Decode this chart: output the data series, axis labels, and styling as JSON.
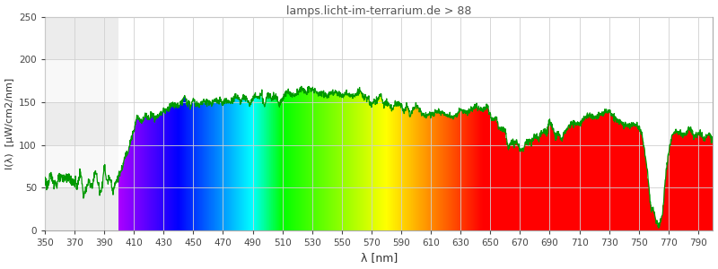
{
  "title": "lamps.licht-im-terrarium.de > 88",
  "xlabel": "λ [nm]",
  "ylabel": "I(λ)  [µW/cm2/nm]",
  "xlim": [
    350,
    800
  ],
  "ylim": [
    0,
    250
  ],
  "yticks": [
    0,
    50,
    100,
    150,
    200,
    250
  ],
  "xticks": [
    350,
    370,
    390,
    410,
    430,
    450,
    470,
    490,
    510,
    530,
    550,
    570,
    590,
    610,
    630,
    650,
    670,
    690,
    710,
    730,
    750,
    770,
    790
  ],
  "bg_color": "#f0f0f0",
  "plot_bg_color": "#ffffff",
  "grid_color": "#d0d0d0",
  "line_color": "#009900",
  "title_color": "#555555",
  "spectrum_start_nm": 400,
  "spectrum_end_nm": 730,
  "spectrum_data": [
    [
      350,
      57
    ],
    [
      352,
      52
    ],
    [
      354,
      60
    ],
    [
      356,
      48
    ],
    [
      358,
      55
    ],
    [
      360,
      62
    ],
    [
      362,
      50
    ],
    [
      364,
      58
    ],
    [
      366,
      65
    ],
    [
      368,
      53
    ],
    [
      370,
      60
    ],
    [
      372,
      55
    ],
    [
      374,
      68
    ],
    [
      376,
      52
    ],
    [
      378,
      58
    ],
    [
      380,
      62
    ],
    [
      382,
      55
    ],
    [
      384,
      70
    ],
    [
      386,
      58
    ],
    [
      388,
      53
    ],
    [
      390,
      65
    ],
    [
      392,
      58
    ],
    [
      394,
      62
    ],
    [
      396,
      55
    ],
    [
      398,
      60
    ],
    [
      400,
      65
    ],
    [
      402,
      75
    ],
    [
      404,
      85
    ],
    [
      406,
      95
    ],
    [
      408,
      108
    ],
    [
      410,
      118
    ],
    [
      412,
      125
    ],
    [
      414,
      130
    ],
    [
      416,
      132
    ],
    [
      418,
      133
    ],
    [
      420,
      134
    ],
    [
      422,
      136
    ],
    [
      424,
      137
    ],
    [
      426,
      138
    ],
    [
      428,
      136
    ],
    [
      430,
      138
    ],
    [
      432,
      140
    ],
    [
      434,
      145
    ],
    [
      436,
      148
    ],
    [
      438,
      150
    ],
    [
      440,
      148
    ],
    [
      442,
      150
    ],
    [
      444,
      152
    ],
    [
      446,
      150
    ],
    [
      448,
      150
    ],
    [
      450,
      152
    ],
    [
      452,
      148
    ],
    [
      454,
      150
    ],
    [
      456,
      148
    ],
    [
      458,
      147
    ],
    [
      460,
      148
    ],
    [
      462,
      150
    ],
    [
      464,
      152
    ],
    [
      466,
      150
    ],
    [
      468,
      148
    ],
    [
      470,
      150
    ],
    [
      472,
      152
    ],
    [
      474,
      153
    ],
    [
      476,
      155
    ],
    [
      478,
      154
    ],
    [
      480,
      152
    ],
    [
      482,
      151
    ],
    [
      484,
      153
    ],
    [
      486,
      152
    ],
    [
      488,
      150
    ],
    [
      490,
      152
    ],
    [
      492,
      153
    ],
    [
      494,
      155
    ],
    [
      496,
      154
    ],
    [
      498,
      153
    ],
    [
      500,
      155
    ],
    [
      502,
      157
    ],
    [
      504,
      158
    ],
    [
      506,
      157
    ],
    [
      508,
      155
    ],
    [
      510,
      156
    ],
    [
      512,
      157
    ],
    [
      514,
      158
    ],
    [
      516,
      160
    ],
    [
      518,
      161
    ],
    [
      520,
      162
    ],
    [
      522,
      163
    ],
    [
      524,
      162
    ],
    [
      526,
      163
    ],
    [
      528,
      164
    ],
    [
      530,
      163
    ],
    [
      532,
      162
    ],
    [
      534,
      161
    ],
    [
      536,
      162
    ],
    [
      538,
      163
    ],
    [
      540,
      162
    ],
    [
      542,
      161
    ],
    [
      544,
      160
    ],
    [
      546,
      161
    ],
    [
      548,
      162
    ],
    [
      550,
      163
    ],
    [
      552,
      162
    ],
    [
      554,
      161
    ],
    [
      556,
      160
    ],
    [
      558,
      159
    ],
    [
      560,
      158
    ],
    [
      562,
      157
    ],
    [
      564,
      156
    ],
    [
      566,
      155
    ],
    [
      568,
      154
    ],
    [
      570,
      153
    ],
    [
      572,
      152
    ],
    [
      574,
      151
    ],
    [
      576,
      150
    ],
    [
      578,
      149
    ],
    [
      580,
      148
    ],
    [
      582,
      147
    ],
    [
      584,
      146
    ],
    [
      586,
      145
    ],
    [
      588,
      144
    ],
    [
      590,
      143
    ],
    [
      592,
      142
    ],
    [
      594,
      141
    ],
    [
      596,
      140
    ],
    [
      598,
      139
    ],
    [
      600,
      138
    ],
    [
      605,
      138
    ],
    [
      610,
      138
    ],
    [
      615,
      138
    ],
    [
      620,
      138
    ],
    [
      625,
      138
    ],
    [
      630,
      140
    ],
    [
      635,
      142
    ],
    [
      640,
      143
    ],
    [
      645,
      143
    ],
    [
      648,
      140
    ],
    [
      650,
      137
    ],
    [
      652,
      132
    ],
    [
      654,
      128
    ],
    [
      656,
      125
    ],
    [
      658,
      118
    ],
    [
      660,
      110
    ],
    [
      662,
      105
    ],
    [
      664,
      103
    ],
    [
      666,
      101
    ],
    [
      668,
      100
    ],
    [
      670,
      100
    ],
    [
      672,
      100
    ],
    [
      674,
      101
    ],
    [
      676,
      103
    ],
    [
      678,
      105
    ],
    [
      680,
      108
    ],
    [
      682,
      110
    ],
    [
      684,
      112
    ],
    [
      686,
      115
    ],
    [
      688,
      118
    ],
    [
      690,
      120
    ],
    [
      692,
      118
    ],
    [
      694,
      115
    ],
    [
      696,
      112
    ],
    [
      698,
      110
    ],
    [
      700,
      112
    ],
    [
      705,
      120
    ],
    [
      710,
      128
    ],
    [
      715,
      130
    ],
    [
      720,
      130
    ],
    [
      725,
      132
    ],
    [
      730,
      130
    ],
    [
      735,
      130
    ],
    [
      740,
      128
    ],
    [
      742,
      128
    ],
    [
      744,
      126
    ],
    [
      746,
      124
    ],
    [
      748,
      122
    ],
    [
      750,
      120
    ],
    [
      752,
      110
    ],
    [
      754,
      90
    ],
    [
      756,
      60
    ],
    [
      758,
      30
    ],
    [
      760,
      10
    ],
    [
      762,
      5
    ],
    [
      764,
      8
    ],
    [
      766,
      25
    ],
    [
      768,
      60
    ],
    [
      770,
      90
    ],
    [
      772,
      105
    ],
    [
      774,
      112
    ],
    [
      776,
      115
    ],
    [
      778,
      118
    ],
    [
      780,
      118
    ],
    [
      782,
      116
    ],
    [
      784,
      115
    ],
    [
      786,
      115
    ],
    [
      788,
      114
    ],
    [
      790,
      113
    ],
    [
      792,
      112
    ],
    [
      794,
      112
    ],
    [
      796,
      111
    ],
    [
      798,
      110
    ],
    [
      800,
      110
    ]
  ]
}
